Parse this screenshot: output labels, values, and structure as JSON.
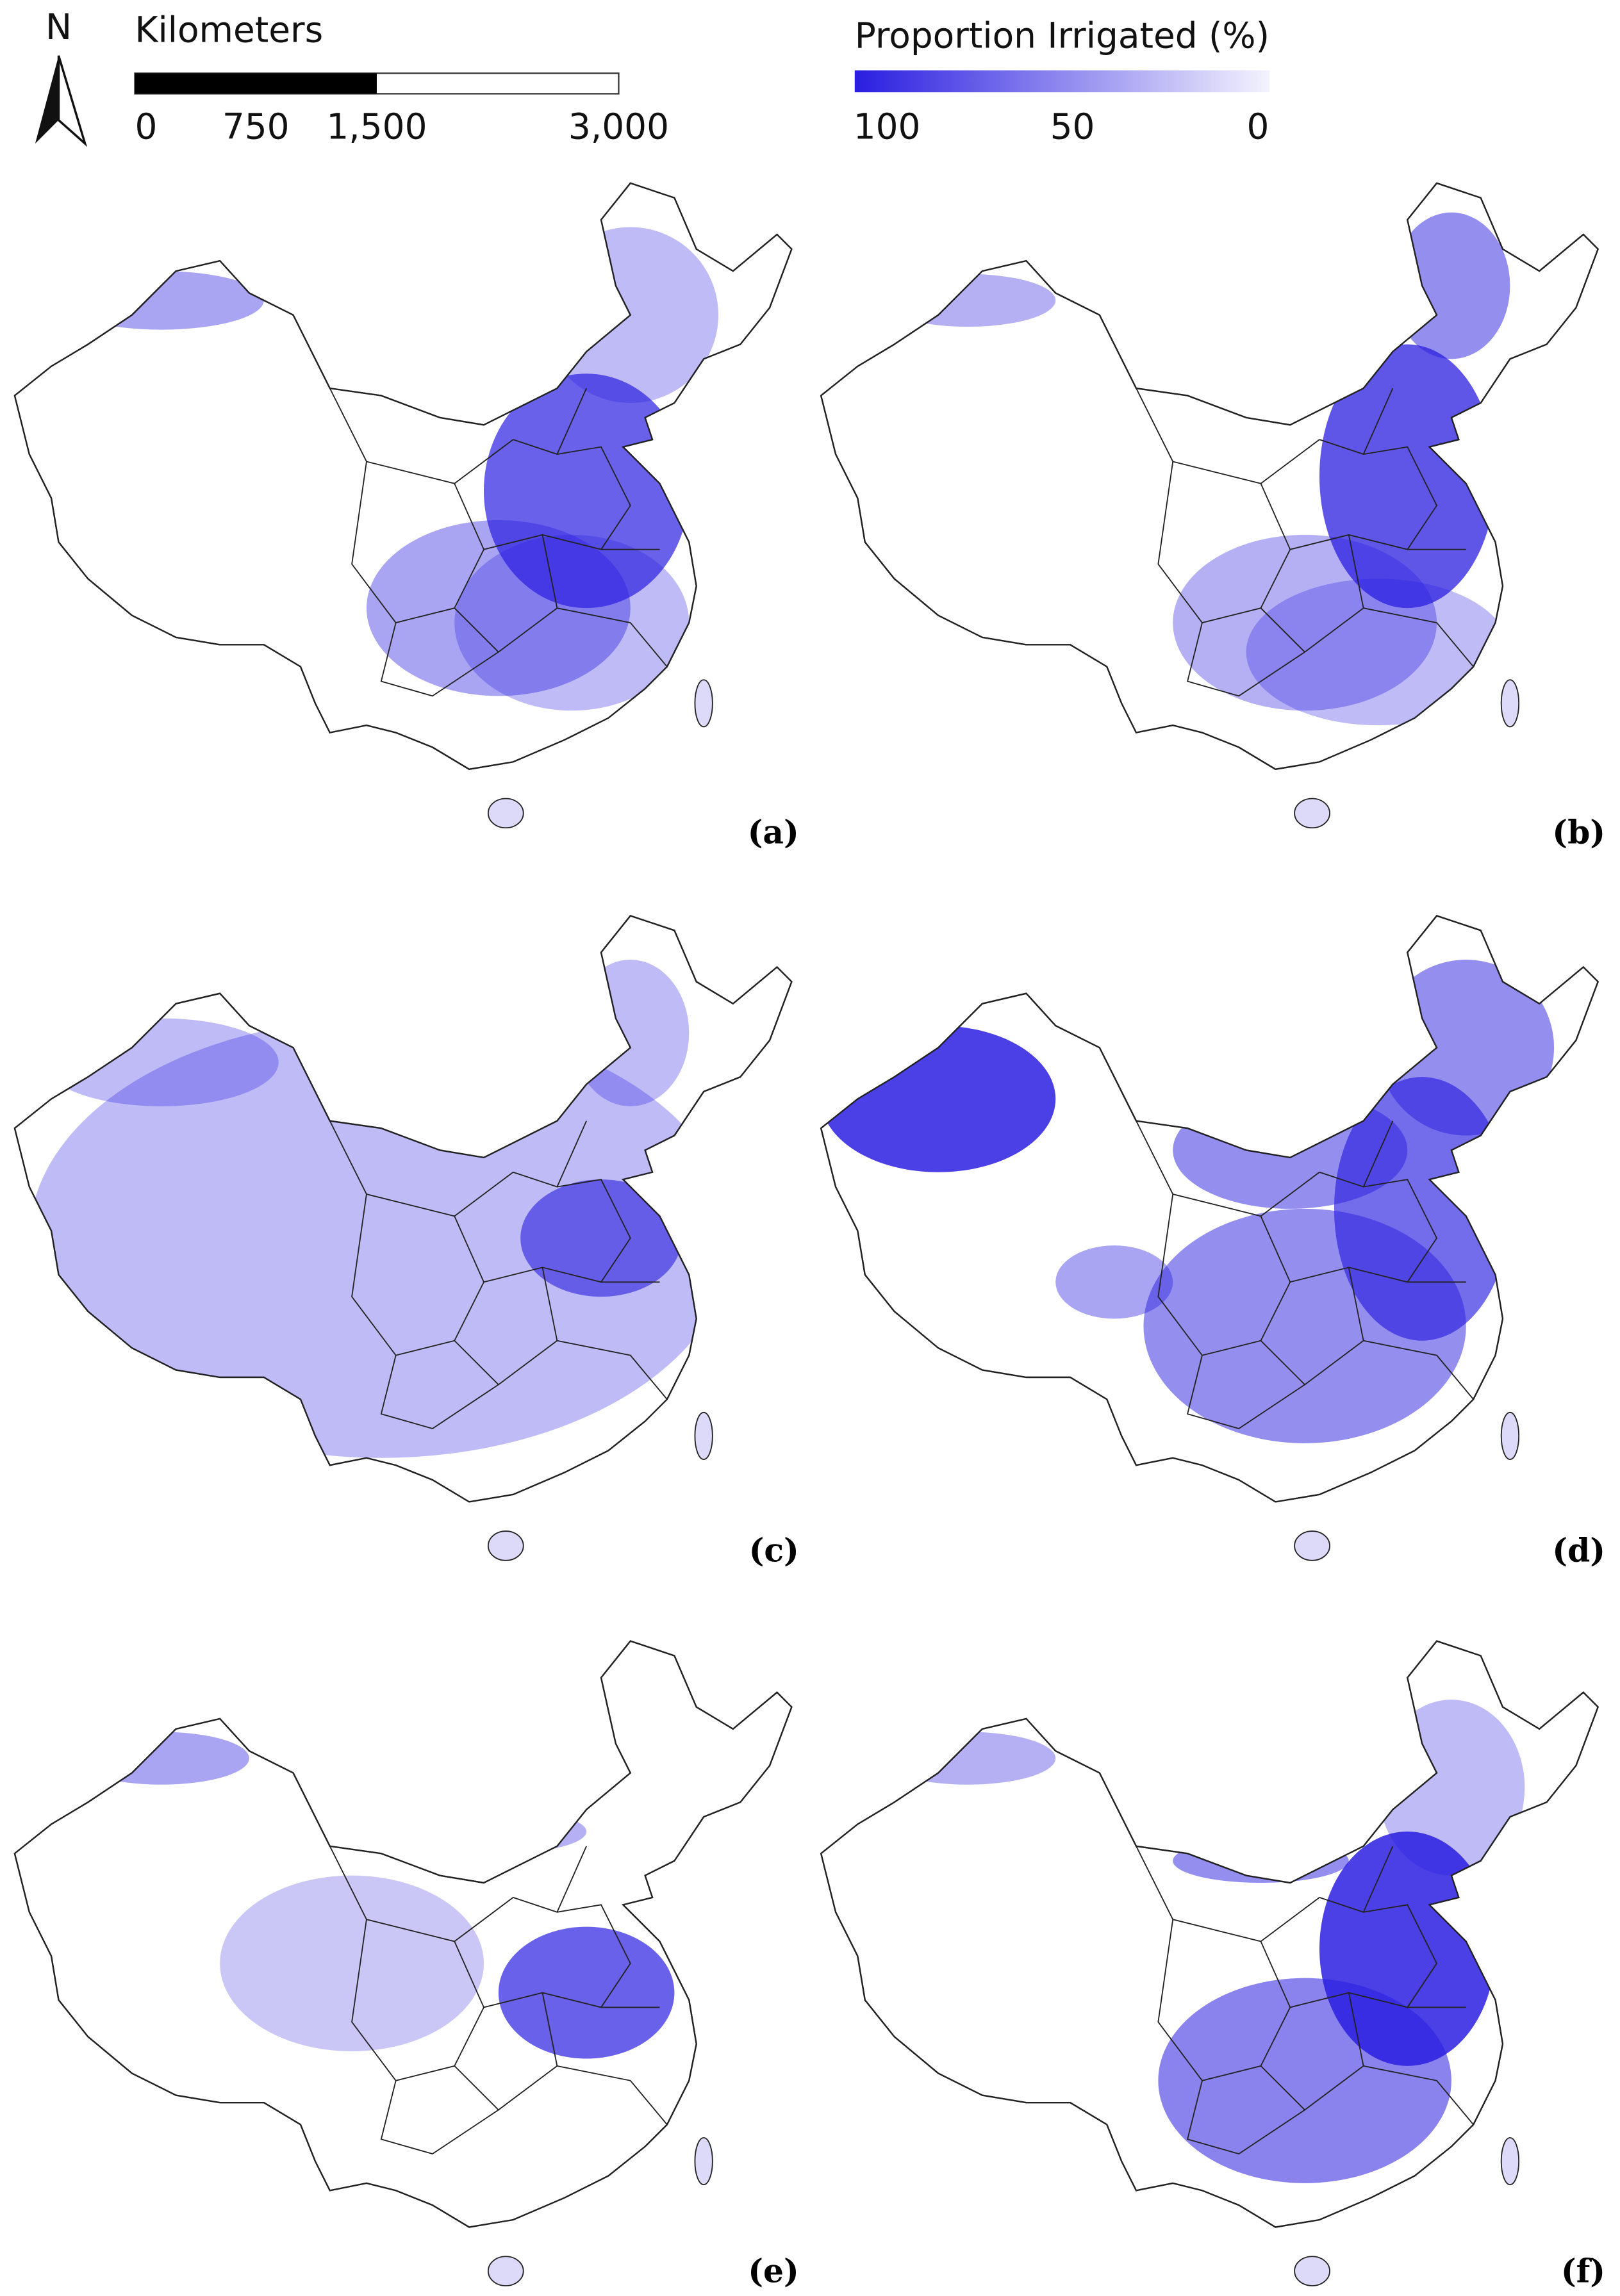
{
  "north_arrow": {
    "label": "N"
  },
  "scale_bar": {
    "title": "Kilometers",
    "ticks": [
      0,
      750,
      {
        "value": 1500,
        "label": "1,500"
      },
      {
        "value": 3000,
        "label": "3,000"
      }
    ]
  },
  "color_bar": {
    "title": "Proportion Irrigated (%)",
    "ticks": [
      100,
      50,
      0
    ],
    "colors": [
      "#2a1ee0",
      "#f4f3fd"
    ]
  },
  "panels": [
    {
      "label": "(a)"
    },
    {
      "label": "(b)"
    },
    {
      "label": "(c)"
    },
    {
      "label": "(d)"
    },
    {
      "label": "(e)"
    },
    {
      "label": "(f)"
    }
  ]
}
